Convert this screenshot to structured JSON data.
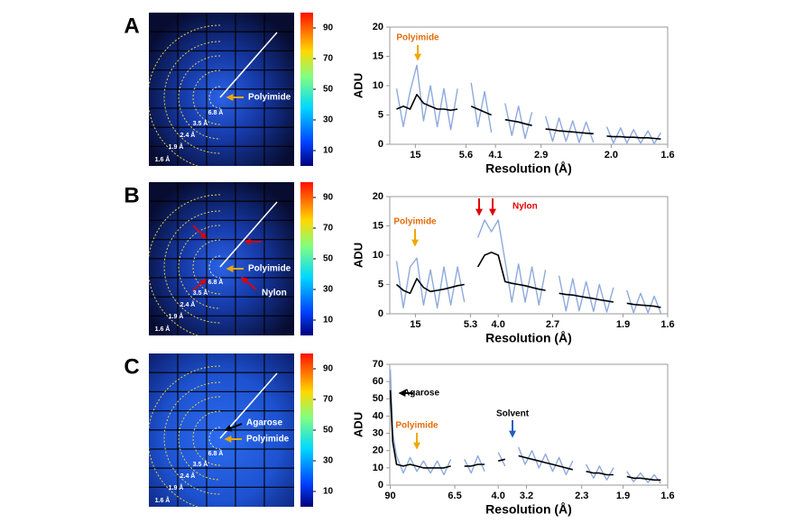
{
  "figure": {
    "panels": [
      {
        "label": "A",
        "image": {
          "ring_labels": [
            "6.8 Å",
            "3.5 Å",
            "2.4 Å",
            "1.9 Å",
            "1.6 Å"
          ],
          "annotations": [
            "Polyimide"
          ]
        },
        "colorbar": {
          "lim": [
            0,
            100
          ],
          "ticks": [
            10,
            30,
            50,
            70,
            90
          ]
        }
      },
      {
        "label": "B",
        "image": {
          "ring_labels": [
            "6.8 Å",
            "3.5 Å",
            "2.4 Å",
            "1.9 Å",
            "1.6 Å"
          ],
          "annotations": [
            "Polyimide",
            "Nylon"
          ]
        },
        "colorbar": {
          "lim": [
            0,
            100
          ],
          "ticks": [
            10,
            30,
            50,
            70,
            90
          ]
        }
      },
      {
        "label": "C",
        "image": {
          "ring_labels": [
            "6.8 Å",
            "3.5 Å",
            "2.4 Å",
            "1.9 Å",
            "1.6 Å"
          ],
          "annotations": [
            "Agarose",
            "Polyimide"
          ]
        },
        "colorbar": {
          "lim": [
            0,
            100
          ],
          "ticks": [
            10,
            30,
            50,
            70,
            90
          ]
        }
      }
    ]
  },
  "chart_data": [
    {
      "type": "line",
      "xlabel": "Resolution (Å)",
      "ylabel": "ADU",
      "xscale": "reciprocal",
      "x": [
        40,
        25,
        18.2,
        14.3,
        11.8,
        10,
        8.7,
        7.7,
        6.9,
        6.25,
        5.71,
        5.26,
        4.88,
        4.55,
        4.26,
        4.0,
        3.77,
        3.57,
        3.39,
        3.23,
        3.08,
        2.94,
        2.82,
        2.7,
        2.6,
        2.5,
        2.41,
        2.33,
        2.25,
        2.17,
        2.11,
        2.04,
        1.98,
        1.92,
        1.87,
        1.82,
        1.77,
        1.72,
        1.68,
        1.64
      ],
      "xlim": [
        100,
        1.6
      ],
      "xticks": [
        15,
        5.6,
        4.1,
        2.9,
        {
          "value": 2,
          "label": "2.0"
        },
        1.6
      ],
      "ylim": [
        0,
        20
      ],
      "yticks": [
        0,
        5,
        10,
        15,
        20
      ],
      "series": [
        {
          "color": "#8eaadc",
          "values": [
            9.5,
            3,
            9,
            13.5,
            4,
            10,
            3,
            9.5,
            2.5,
            9.5,
            null,
            10.5,
            3,
            9,
            2,
            null,
            7,
            1.5,
            6.5,
            1,
            5.5,
            null,
            4.8,
            0.5,
            4.5,
            0.5,
            4,
            0.3,
            3.8,
            0.3,
            null,
            3,
            0.2,
            2.8,
            0.2,
            2.5,
            0.2,
            2.3,
            0.1,
            2
          ]
        },
        {
          "color": "#000000",
          "values": [
            6,
            6.5,
            6,
            8.5,
            7,
            6.5,
            6,
            6,
            5.8,
            6,
            null,
            6.5,
            6,
            5.5,
            5,
            null,
            4.2,
            4,
            3.8,
            3.5,
            3.2,
            null,
            2.6,
            2.5,
            2.3,
            2.2,
            2.1,
            2,
            1.9,
            1.8,
            null,
            1.4,
            1.3,
            1.3,
            1.2,
            1.2,
            1.1,
            1.1,
            1,
            0.9
          ]
        }
      ],
      "annotations": [
        {
          "text": "Polyimide",
          "color": "#e46c0a"
        }
      ]
    },
    {
      "type": "line",
      "xlabel": "Resolution (Å)",
      "ylabel": "ADU",
      "xscale": "reciprocal",
      "x": [
        40,
        25,
        18.2,
        14.3,
        11.8,
        10,
        8.7,
        7.7,
        6.9,
        6.25,
        5.71,
        5.26,
        4.88,
        4.55,
        4.26,
        4.0,
        3.77,
        3.57,
        3.39,
        3.23,
        3.08,
        2.94,
        2.82,
        2.7,
        2.6,
        2.5,
        2.41,
        2.33,
        2.25,
        2.17,
        2.11,
        2.04,
        1.98,
        1.92,
        1.87,
        1.82,
        1.77,
        1.72,
        1.68,
        1.64
      ],
      "xlim": [
        100,
        1.6
      ],
      "xticks": [
        15,
        5.3,
        {
          "value": 4,
          "label": "4.0"
        },
        2.7,
        1.9,
        1.6
      ],
      "ylim": [
        0,
        20
      ],
      "yticks": [
        0,
        5,
        10,
        15,
        20
      ],
      "series": [
        {
          "color": "#8eaadc",
          "values": [
            9,
            1,
            8,
            9.5,
            1.5,
            7.5,
            1,
            8,
            1.5,
            8,
            2,
            null,
            13,
            16,
            14,
            16,
            9,
            2,
            8.5,
            2,
            8,
            1.5,
            7.5,
            null,
            6.5,
            0.5,
            6,
            0.5,
            5.5,
            0.4,
            5,
            0.3,
            4.5,
            null,
            4,
            0.2,
            3.5,
            0.2,
            3,
            0.1
          ]
        },
        {
          "color": "#000000",
          "values": [
            5,
            4,
            3.5,
            6,
            4.5,
            3.8,
            4,
            4.2,
            4.5,
            4.8,
            5,
            null,
            8,
            10,
            10.5,
            10,
            5.5,
            5.2,
            5,
            4.8,
            4.5,
            4.2,
            4,
            null,
            3.5,
            3.3,
            3.2,
            3,
            2.8,
            2.6,
            2.4,
            2.2,
            2,
            null,
            1.8,
            1.6,
            1.5,
            1.4,
            1.3,
            1.1
          ]
        }
      ],
      "annotations": [
        {
          "text": "Polyimide",
          "color": "#e46c0a"
        },
        {
          "text": "Nylon",
          "color": "#e00000"
        }
      ]
    },
    {
      "type": "line",
      "xlabel": "Resolution (Å)",
      "ylabel": "ADU",
      "xscale": "reciprocal",
      "x": [
        90,
        60,
        40,
        25,
        18.2,
        14.3,
        11.8,
        10,
        8.7,
        7.7,
        6.9,
        6.25,
        5.71,
        5.26,
        4.88,
        4.55,
        4.26,
        4.0,
        3.77,
        3.57,
        3.39,
        3.23,
        3.08,
        2.94,
        2.82,
        2.7,
        2.6,
        2.5,
        2.41,
        2.33,
        2.25,
        2.17,
        2.11,
        2.04,
        1.98,
        1.92,
        1.87,
        1.82,
        1.77,
        1.72,
        1.68,
        1.64
      ],
      "xlim": [
        100,
        1.6
      ],
      "xticks": [
        90,
        6.5,
        {
          "value": 4,
          "label": "4.0"
        },
        3.2,
        2.3,
        1.9,
        1.6
      ],
      "ylim": [
        0,
        70
      ],
      "yticks": [
        0,
        10,
        20,
        30,
        40,
        50,
        60,
        70
      ],
      "series": [
        {
          "color": "#8eaadc",
          "values": [
            67,
            30,
            17,
            7,
            16,
            8,
            14,
            7,
            14,
            6,
            15,
            null,
            15,
            7,
            17,
            8,
            null,
            19,
            11,
            null,
            22,
            12,
            20,
            10,
            18,
            8,
            16,
            6,
            14,
            null,
            12,
            4,
            11,
            3,
            10,
            null,
            8,
            2,
            7,
            1.5,
            6,
            1
          ]
        },
        {
          "color": "#000000",
          "values": [
            55,
            25,
            12,
            11,
            12,
            11,
            10,
            10,
            10,
            10,
            11,
            null,
            11,
            11,
            12,
            12,
            null,
            14,
            15,
            null,
            17,
            16,
            15,
            14,
            13,
            12,
            11,
            10,
            9,
            null,
            8,
            7,
            7,
            6,
            6,
            null,
            5,
            4,
            4,
            3.5,
            3,
            3
          ]
        }
      ],
      "annotations": [
        {
          "text": "Agarose",
          "color": "#000000"
        },
        {
          "text": "Polyimide",
          "color": "#e46c0a"
        },
        {
          "text": "Solvent",
          "color": "#000000"
        }
      ]
    }
  ]
}
